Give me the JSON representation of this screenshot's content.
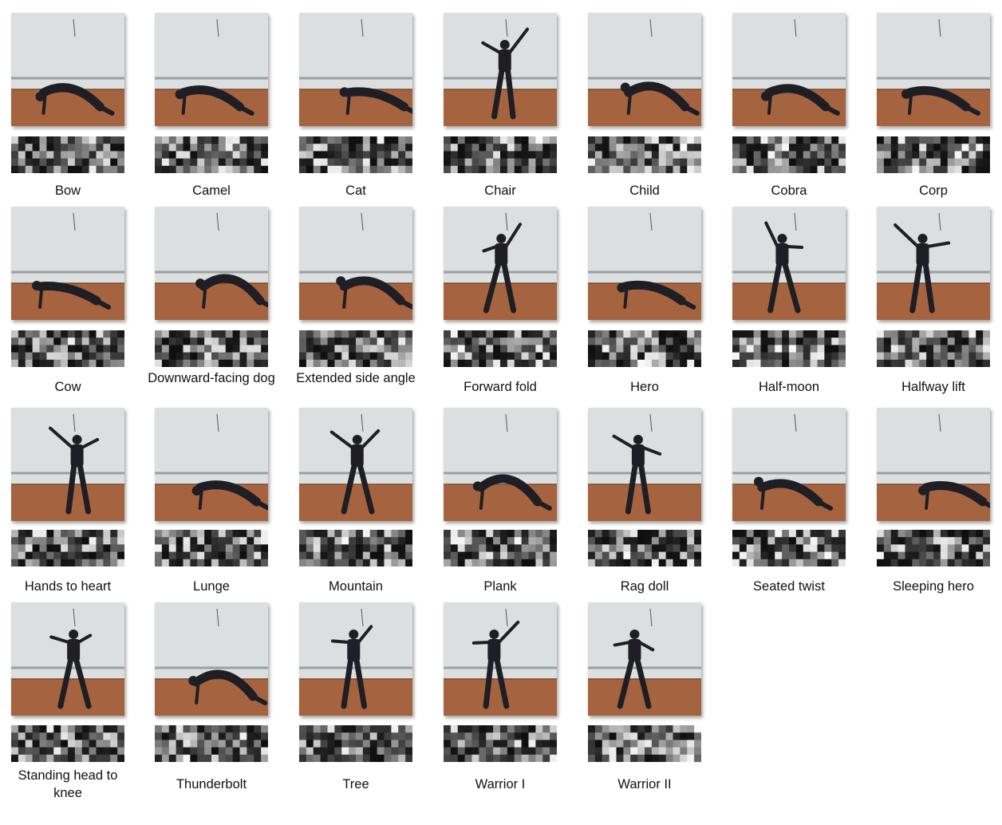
{
  "figure": {
    "poses": [
      {
        "label": "Bow"
      },
      {
        "label": "Camel"
      },
      {
        "label": "Cat"
      },
      {
        "label": "Chair"
      },
      {
        "label": "Child"
      },
      {
        "label": "Cobra"
      },
      {
        "label": "Corp"
      },
      {
        "label": "Cow"
      },
      {
        "label": "Downward-facing dog"
      },
      {
        "label": "Extended side angle"
      },
      {
        "label": "Forward fold"
      },
      {
        "label": "Hero"
      },
      {
        "label": "Half-moon"
      },
      {
        "label": "Halfway lift"
      },
      {
        "label": "Hands to heart"
      },
      {
        "label": "Lunge"
      },
      {
        "label": "Mountain"
      },
      {
        "label": "Plank"
      },
      {
        "label": "Rag doll"
      },
      {
        "label": "Seated twist"
      },
      {
        "label": "Sleeping hero"
      },
      {
        "label": "Standing head to knee"
      },
      {
        "label": "Thunderbolt"
      },
      {
        "label": "Tree"
      },
      {
        "label": "Warrior I"
      },
      {
        "label": "Warrior II"
      }
    ],
    "colors": {
      "wall": "#dcdfdf",
      "floor": "#a5643f",
      "figure": "#1e1e24",
      "heatmap_dark": "#111111",
      "heatmap_light": "#ffffff"
    }
  }
}
